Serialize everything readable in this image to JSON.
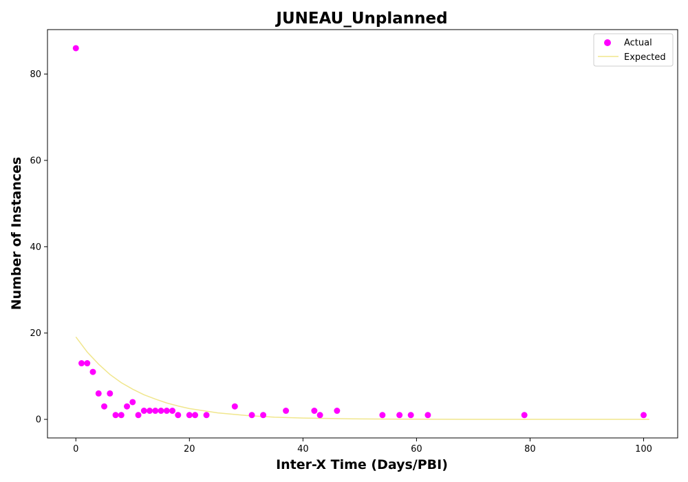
{
  "chart_data": {
    "type": "scatter",
    "title": "JUNEAU_Unplanned",
    "xlabel": "Inter-X Time (Days/PBI)",
    "ylabel": "Number of Instances",
    "xlim": [
      -5,
      106
    ],
    "ylim": [
      -4.3,
      90.3
    ],
    "x_ticks": [
      0,
      20,
      40,
      60,
      80,
      100
    ],
    "y_ticks": [
      0,
      20,
      40,
      60,
      80
    ],
    "grid": false,
    "legend_position": "top-right",
    "series": [
      {
        "name": "Actual",
        "kind": "scatter",
        "color": "#ff00ff",
        "x": [
          0,
          1,
          2,
          3,
          4,
          5,
          6,
          7,
          8,
          9,
          10,
          11,
          12,
          13,
          14,
          15,
          16,
          17,
          18,
          20,
          21,
          23,
          28,
          31,
          33,
          37,
          42,
          43,
          46,
          54,
          57,
          59,
          62,
          79,
          100
        ],
        "y": [
          86,
          13,
          13,
          11,
          6,
          3,
          6,
          1,
          1,
          3,
          4,
          1,
          2,
          2,
          2,
          2,
          2,
          2,
          1,
          1,
          1,
          1,
          3,
          1,
          1,
          2,
          2,
          1,
          2,
          1,
          1,
          1,
          1,
          1,
          1
        ]
      },
      {
        "name": "Expected",
        "kind": "line",
        "color": "#f0e68c",
        "x": [
          0,
          2,
          4,
          6,
          8,
          10,
          12,
          14,
          16,
          18,
          20,
          25,
          30,
          35,
          40,
          45,
          50,
          55,
          60,
          70,
          80,
          90,
          101
        ],
        "y": [
          19.1,
          15.6,
          12.8,
          10.4,
          8.5,
          7.0,
          5.7,
          4.7,
          3.8,
          3.1,
          2.5,
          1.5,
          0.9,
          0.5,
          0.3,
          0.2,
          0.1,
          0.06,
          0.04,
          0.01,
          0,
          0,
          0
        ]
      }
    ]
  }
}
